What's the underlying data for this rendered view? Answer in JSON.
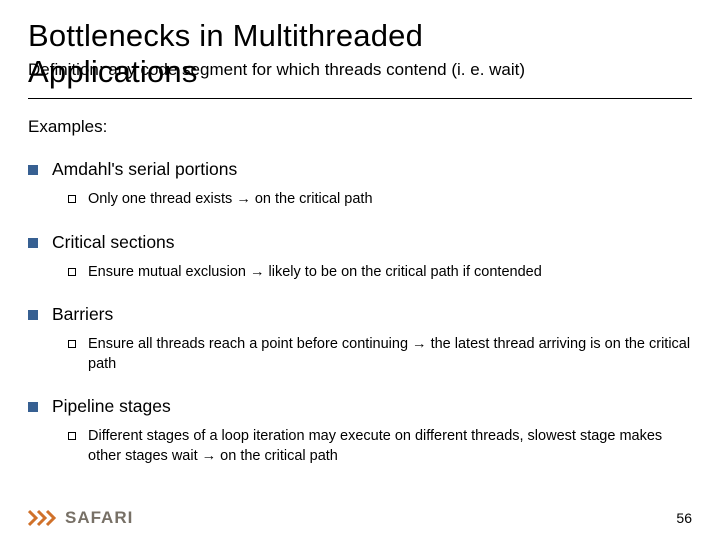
{
  "title": {
    "line1": "Bottlenecks in Multithreaded",
    "line2": "Applications"
  },
  "definition": "Definition: any code segment for which threads contend (i. e. wait)",
  "examples_label": "Examples:",
  "bullet_color": "#376092",
  "items": [
    {
      "title": "Amdahl's serial portions",
      "subs": [
        "Only one thread exists → on the critical path"
      ]
    },
    {
      "title": "Critical sections",
      "subs": [
        "Ensure mutual exclusion → likely to be on the critical path if contended"
      ]
    },
    {
      "title": "Barriers",
      "subs": [
        "Ensure all threads reach a point before continuing → the latest thread arriving is on the critical path"
      ]
    },
    {
      "title": "Pipeline stages",
      "subs": [
        "Different stages of a loop iteration may execute on different threads, slowest stage makes other stages wait → on the critical path"
      ]
    }
  ],
  "logo": {
    "chevron_color": "#d0712a",
    "wordmark": "SAFARI",
    "wordmark_color": "#777066"
  },
  "page_number": "56"
}
